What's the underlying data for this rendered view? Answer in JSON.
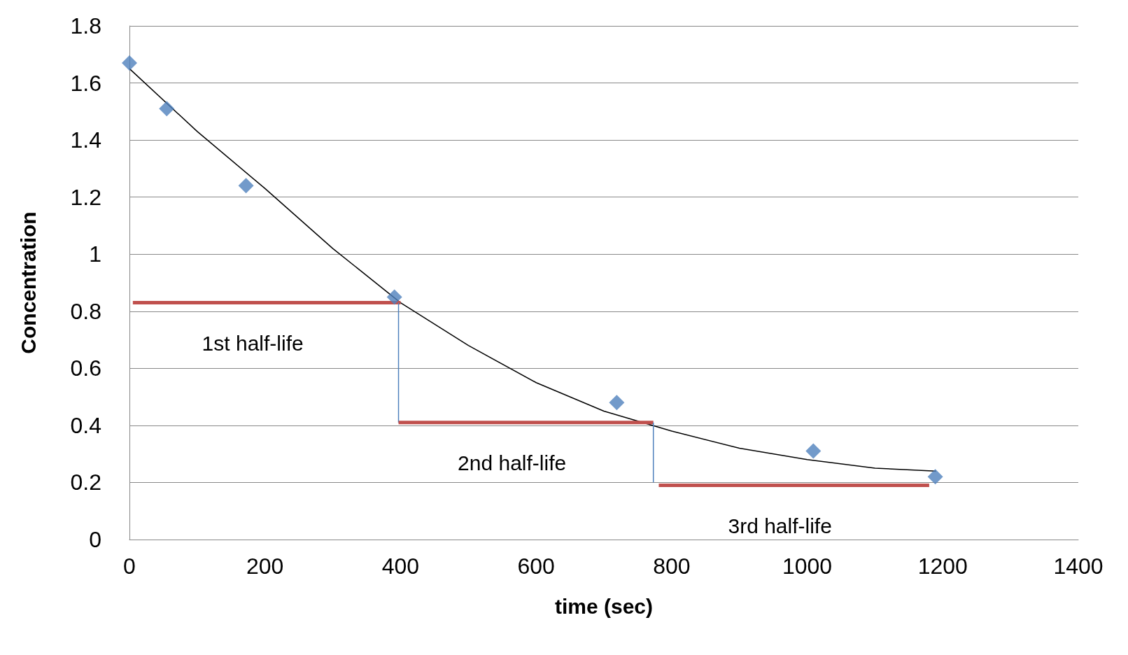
{
  "chart_data": {
    "type": "scatter",
    "xlabel": "time (sec)",
    "ylabel": "Concentration",
    "series": [
      {
        "type": "line",
        "color": "#000000",
        "marker": "none",
        "line_style": "solid",
        "x": [
          0,
          100,
          200,
          300,
          400,
          500,
          600,
          700,
          800,
          900,
          1000,
          1100,
          1190
        ],
        "values": [
          1.65,
          1.43,
          1.23,
          1.02,
          0.83,
          0.68,
          0.55,
          0.45,
          0.38,
          0.32,
          0.28,
          0.25,
          0.24
        ]
      },
      {
        "color": "#4f81bd",
        "marker": "diamond",
        "x": [
          0,
          55,
          172,
          391,
          719,
          1009,
          1189
        ],
        "values": [
          1.67,
          1.51,
          1.24,
          0.85,
          0.48,
          0.31,
          0.22
        ]
      },
      {
        "type": "line",
        "name": "1st half-life",
        "color": "#c0504d",
        "marker": "none",
        "line_style": "solid",
        "x": [
          5,
          400
        ],
        "values": [
          0.83,
          0.83
        ]
      },
      {
        "type": "line",
        "color": "#4f81bd",
        "marker": "none",
        "line_style": "solid",
        "x": [
          397,
          397
        ],
        "values": [
          0.83,
          0.41
        ]
      },
      {
        "type": "line",
        "name": "2nd half-life",
        "color": "#c0504d",
        "marker": "none",
        "line_style": "solid",
        "x": [
          397,
          773
        ],
        "values": [
          0.41,
          0.41
        ]
      },
      {
        "type": "line",
        "color": "#4f81bd",
        "marker": "none",
        "line_style": "solid",
        "x": [
          773,
          773
        ],
        "values": [
          0.41,
          0.2
        ]
      },
      {
        "type": "line",
        "name": "3rd half-life",
        "color": "#c0504d",
        "marker": "none",
        "line_style": "solid",
        "x": [
          781,
          1180
        ],
        "values": [
          0.19,
          0.19
        ]
      }
    ],
    "xlim": [
      0,
      1400
    ],
    "xticks": [
      0,
      200,
      400,
      600,
      800,
      1000,
      1200,
      1400
    ],
    "ylim": [
      0,
      1.8
    ],
    "yticks": [
      0,
      0.2,
      0.4,
      0.6,
      0.8,
      1,
      1.2,
      1.4,
      1.6,
      1.8
    ],
    "grid": "y",
    "legend": false
  }
}
